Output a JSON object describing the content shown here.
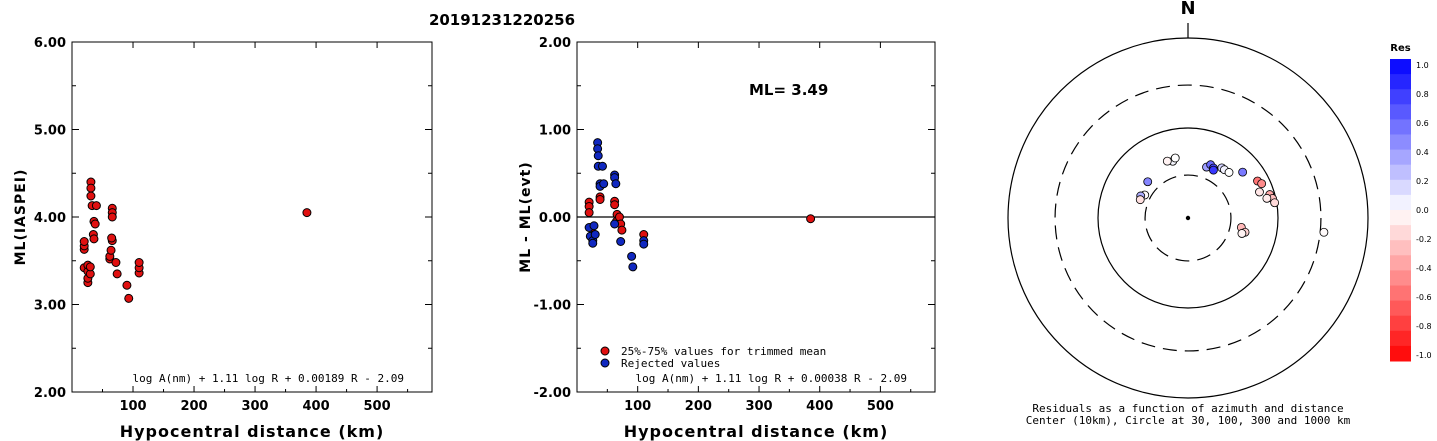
{
  "event_id": "20191231220256",
  "chart_data": [
    {
      "type": "scatter",
      "ylabel": "ML(IASPEI)",
      "xlabel": "Hypocentral distance (km)",
      "xlim": [
        0,
        590
      ],
      "ylim": [
        2.0,
        6.0
      ],
      "xticks": [
        100,
        200,
        300,
        400,
        500
      ],
      "yticks": [
        "2.00",
        "3.00",
        "4.00",
        "5.00",
        "6.00"
      ],
      "formula": "log A(nm) + 1.11 log R + 0.00189 R - 2.09",
      "point_color": "#e01010",
      "points": [
        [
          20,
          3.42
        ],
        [
          20,
          3.63
        ],
        [
          20,
          3.67
        ],
        [
          20,
          3.72
        ],
        [
          26,
          3.25
        ],
        [
          26,
          3.3
        ],
        [
          26,
          3.38
        ],
        [
          26,
          3.45
        ],
        [
          30,
          3.35
        ],
        [
          30,
          3.43
        ],
        [
          31,
          4.4
        ],
        [
          31,
          4.33
        ],
        [
          31,
          4.24
        ],
        [
          33,
          4.13
        ],
        [
          36,
          3.95
        ],
        [
          35,
          3.8
        ],
        [
          36,
          3.75
        ],
        [
          38,
          3.92
        ],
        [
          40,
          4.13
        ],
        [
          62,
          3.52
        ],
        [
          62,
          3.55
        ],
        [
          64,
          3.62
        ],
        [
          66,
          3.73
        ],
        [
          65,
          3.76
        ],
        [
          66,
          4.1
        ],
        [
          66,
          4.05
        ],
        [
          66,
          4.0
        ],
        [
          72,
          3.48
        ],
        [
          74,
          3.35
        ],
        [
          90,
          3.22
        ],
        [
          93,
          3.07
        ],
        [
          110,
          3.36
        ],
        [
          110,
          3.42
        ],
        [
          110,
          3.48
        ],
        [
          385,
          4.05
        ]
      ]
    },
    {
      "type": "scatter",
      "ylabel": "ML - ML(evt)",
      "xlabel": "Hypocentral distance (km)",
      "xlim": [
        0,
        590
      ],
      "ylim": [
        -2.0,
        2.0
      ],
      "xticks": [
        100,
        200,
        300,
        400,
        500
      ],
      "yticks": [
        "-2.00",
        "-1.00",
        "0.00",
        "1.00",
        "2.00"
      ],
      "ml_label": "ML= 3.49",
      "formula": "log A(nm) + 1.11 log R + 0.00038 R - 2.09",
      "legend": [
        {
          "label": "25%-75% values for trimmed mean",
          "color": "#e01010"
        },
        {
          "label": "Rejected values",
          "color": "#1028c0"
        }
      ],
      "series": [
        {
          "color": "#e01010",
          "points": [
            [
              20,
              0.17
            ],
            [
              20,
              0.12
            ],
            [
              20,
              0.05
            ],
            [
              24,
              -0.12
            ],
            [
              38,
              0.23
            ],
            [
              38,
              0.2
            ],
            [
              62,
              0.18
            ],
            [
              62,
              0.14
            ],
            [
              65,
              -0.05
            ],
            [
              66,
              0.03
            ],
            [
              70,
              0.0
            ],
            [
              72,
              -0.08
            ],
            [
              74,
              -0.15
            ],
            [
              110,
              -0.2
            ],
            [
              385,
              -0.02
            ]
          ]
        },
        {
          "color": "#1028c0",
          "points": [
            [
              20,
              -0.12
            ],
            [
              22,
              -0.22
            ],
            [
              26,
              -0.27
            ],
            [
              26,
              -0.3
            ],
            [
              30,
              -0.2
            ],
            [
              28,
              -0.1
            ],
            [
              34,
              0.85
            ],
            [
              34,
              0.78
            ],
            [
              35,
              0.7
            ],
            [
              35,
              0.58
            ],
            [
              38,
              0.38
            ],
            [
              38,
              0.35
            ],
            [
              42,
              0.58
            ],
            [
              44,
              0.38
            ],
            [
              62,
              0.48
            ],
            [
              62,
              0.45
            ],
            [
              64,
              0.38
            ],
            [
              62,
              -0.08
            ],
            [
              72,
              -0.28
            ],
            [
              90,
              -0.45
            ],
            [
              92,
              -0.57
            ],
            [
              110,
              -0.27
            ],
            [
              110,
              -0.31
            ]
          ]
        }
      ]
    },
    {
      "type": "polar",
      "north_label": "N",
      "caption_line1": "Residuals as a function of azimuth and distance",
      "caption_line2": "Center (10km), Circle at 30, 100, 300 and 1000 km",
      "rings_km": [
        30,
        100,
        300,
        1000
      ],
      "points": [
        {
          "az": 345,
          "dist_km": 45,
          "res": 0.03
        },
        {
          "az": 340,
          "dist_km": 47,
          "res": -0.05
        },
        {
          "az": 348,
          "dist_km": 48,
          "res": 0.0
        },
        {
          "az": 312,
          "dist_km": 40,
          "res": 0.48
        },
        {
          "az": 298,
          "dist_km": 35,
          "res": -0.02
        },
        {
          "az": 295,
          "dist_km": 38,
          "res": 0.32
        },
        {
          "az": 291,
          "dist_km": 37,
          "res": -0.12
        },
        {
          "az": 20,
          "dist_km": 40,
          "res": 0.38
        },
        {
          "az": 23,
          "dist_km": 44,
          "res": 0.58
        },
        {
          "az": 27,
          "dist_km": 42,
          "res": 0.72
        },
        {
          "az": 28,
          "dist_km": 40,
          "res": 0.78
        },
        {
          "az": 34,
          "dist_km": 47,
          "res": 0.18
        },
        {
          "az": 37,
          "dist_km": 47,
          "res": 0.05
        },
        {
          "az": 42,
          "dist_km": 48,
          "res": 0.0
        },
        {
          "az": 50,
          "dist_km": 62,
          "res": 0.52
        },
        {
          "az": 62,
          "dist_km": 75,
          "res": -0.55
        },
        {
          "az": 65,
          "dist_km": 80,
          "res": -0.45
        },
        {
          "az": 70,
          "dist_km": 70,
          "res": -0.1
        },
        {
          "az": 74,
          "dist_km": 88,
          "res": -0.35
        },
        {
          "az": 77,
          "dist_km": 92,
          "res": -0.25
        },
        {
          "az": 76,
          "dist_km": 80,
          "res": -0.08
        },
        {
          "az": 80,
          "dist_km": 95,
          "res": -0.15
        },
        {
          "az": 96,
          "dist_km": 330,
          "res": -0.02
        },
        {
          "az": 100,
          "dist_km": 40,
          "res": -0.28
        },
        {
          "az": 104,
          "dist_km": 45,
          "res": -0.18
        },
        {
          "az": 106,
          "dist_km": 42,
          "res": -0.05
        }
      ],
      "colorbar": {
        "title": "Res",
        "ticks": [
          "1.0",
          "0.8",
          "0.6",
          "0.4",
          "0.2",
          "0.0",
          "-0.2",
          "-0.4",
          "-0.6",
          "-0.8",
          "-1.0"
        ]
      }
    }
  ]
}
